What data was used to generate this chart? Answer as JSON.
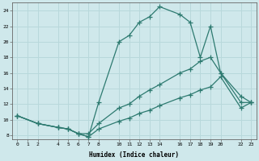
{
  "xlabel": "Humidex (Indice chaleur)",
  "bg_color": "#cfe8eb",
  "grid_color": "#b8d8db",
  "line_color": "#2d7a70",
  "xlim": [
    -0.5,
    23.5
  ],
  "ylim": [
    7.5,
    25.0
  ],
  "xticks": [
    0,
    1,
    2,
    4,
    5,
    6,
    7,
    8,
    10,
    11,
    12,
    13,
    14,
    16,
    17,
    18,
    19,
    20,
    22,
    23
  ],
  "yticks": [
    8,
    10,
    12,
    14,
    16,
    18,
    20,
    22,
    24
  ],
  "line1_x": [
    0,
    2,
    4,
    5,
    6,
    7,
    8,
    10,
    11,
    12,
    13,
    14,
    16,
    17,
    18,
    19,
    20,
    22,
    23
  ],
  "line1_y": [
    10.5,
    9.5,
    9.0,
    8.8,
    8.2,
    7.8,
    12.2,
    20.0,
    20.8,
    22.5,
    23.2,
    24.5,
    23.5,
    22.5,
    18.0,
    22.0,
    16.0,
    12.2,
    12.2
  ],
  "line2_x": [
    0,
    2,
    4,
    5,
    6,
    7,
    8,
    10,
    11,
    12,
    13,
    14,
    16,
    17,
    18,
    19,
    20,
    22,
    23
  ],
  "line2_y": [
    10.5,
    9.5,
    9.0,
    8.8,
    8.2,
    8.2,
    9.5,
    11.5,
    12.0,
    13.0,
    13.8,
    14.5,
    16.0,
    16.5,
    17.5,
    18.0,
    16.0,
    13.0,
    12.2
  ],
  "line3_x": [
    0,
    2,
    4,
    5,
    6,
    7,
    8,
    10,
    11,
    12,
    13,
    14,
    16,
    17,
    18,
    19,
    20,
    22,
    23
  ],
  "line3_y": [
    10.5,
    9.5,
    9.0,
    8.8,
    8.2,
    7.8,
    8.8,
    9.8,
    10.2,
    10.8,
    11.2,
    11.8,
    12.8,
    13.2,
    13.8,
    14.2,
    15.5,
    11.5,
    12.2
  ]
}
